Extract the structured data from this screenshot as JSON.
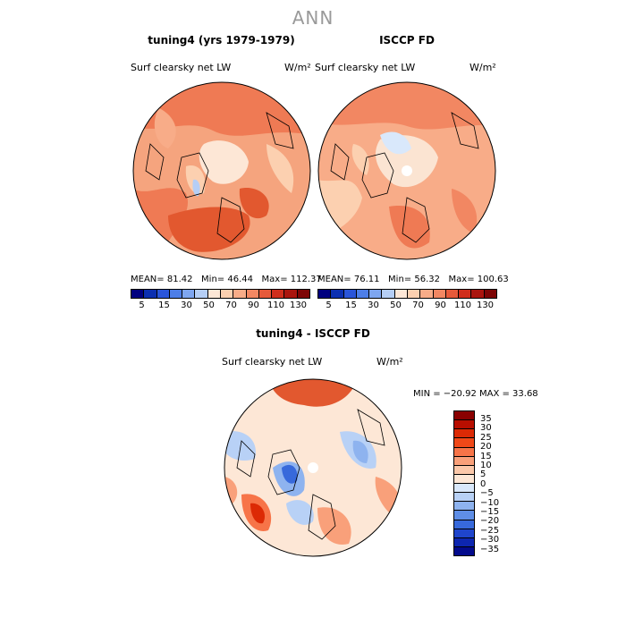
{
  "figure_title": "ANN",
  "panels": [
    {
      "title": "tuning4 (yrs 1979-1979)",
      "variable": "Surf clearsky net LW",
      "units": "W/m²",
      "stats": {
        "mean_label": "MEAN=",
        "mean": "81.42",
        "min_label": "Min=",
        "min": "46.44",
        "max_label": "Max=",
        "max": "112.37"
      }
    },
    {
      "title": "ISCCP FD",
      "variable": "Surf clearsky net LW",
      "units": "W/m²",
      "stats": {
        "mean_label": "MEAN=",
        "mean": "76.11",
        "min_label": "Min=",
        "min": "56.32",
        "max_label": "Max=",
        "max": "100.63"
      }
    }
  ],
  "abs_colorbar": {
    "colors": [
      "#00007f",
      "#0b2fb0",
      "#2a55d9",
      "#4d7ee8",
      "#7ea6f0",
      "#b5cef5",
      "#fde7d6",
      "#fcd0b0",
      "#f8ac88",
      "#f28762",
      "#e65a3a",
      "#cf2e1c",
      "#aa150e",
      "#7d0505"
    ],
    "ticks": [
      "5",
      "15",
      "30",
      "50",
      "70",
      "90",
      "110",
      "130"
    ]
  },
  "diff_panel": {
    "title": "tuning4 - ISCCP FD",
    "variable": "Surf clearsky net LW",
    "units": "W/m²",
    "minmax_text": "MIN = −20.92  MAX =  33.68"
  },
  "diff_colorbar": {
    "colors": [
      "#8a0000",
      "#b80e00",
      "#dc2a05",
      "#f04818",
      "#f77448",
      "#f9a07a",
      "#fbc8aa",
      "#fde7d6",
      "#d9e8fb",
      "#b8d1f6",
      "#8eb3ef",
      "#5f8ee6",
      "#3769db",
      "#1f45cc",
      "#0d26b0",
      "#030a8c"
    ],
    "labels": [
      "35",
      "30",
      "25",
      "20",
      "15",
      "10",
      "5",
      "0",
      "−5",
      "−10",
      "−15",
      "−20",
      "−25",
      "−30",
      "−35"
    ]
  }
}
